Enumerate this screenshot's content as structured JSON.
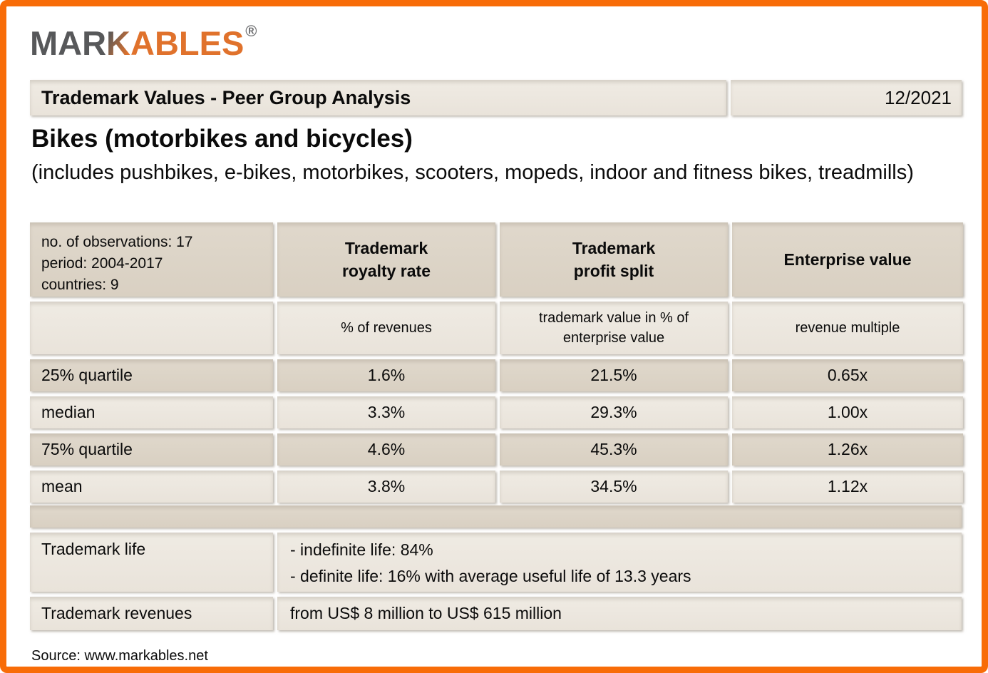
{
  "logo": {
    "part_gray": "MAR",
    "part_blend": "K",
    "part_orange": "ABLES",
    "registered_mark": "®"
  },
  "header": {
    "title": "Trademark Values - Peer Group Analysis",
    "date": "12/2021"
  },
  "subject": {
    "title": "Bikes (motorbikes and bicycles)",
    "description": "(includes pushbikes, e-bikes, motorbikes, scooters, mopeds, indoor and fitness bikes, treadmills)"
  },
  "table": {
    "meta": {
      "observations": "no. of observations: 17",
      "period": "period: 2004-2017",
      "countries": "countries: 9"
    },
    "columns": [
      {
        "label": "Trademark\nroyalty rate",
        "sub": "% of revenues"
      },
      {
        "label": "Trademark\nprofit split",
        "sub": "trademark value in % of enterprise value"
      },
      {
        "label": "Enterprise value",
        "sub": "revenue multiple"
      }
    ],
    "rows": [
      {
        "label": "25% quartile",
        "values": [
          "1.6%",
          "21.5%",
          "0.65x"
        ]
      },
      {
        "label": "median",
        "values": [
          "3.3%",
          "29.3%",
          "1.00x"
        ]
      },
      {
        "label": "75% quartile",
        "values": [
          "4.6%",
          "45.3%",
          "1.26x"
        ]
      },
      {
        "label": "mean",
        "values": [
          "3.8%",
          "34.5%",
          "1.12x"
        ]
      }
    ]
  },
  "details": [
    {
      "label": "Trademark life",
      "lines": [
        "- indefinite life: 84%",
        "- definite life: 16% with average useful life of 13.3 years"
      ]
    },
    {
      "label": "Trademark revenues",
      "lines": [
        "from US$ 8 million to US$ 615 million"
      ]
    }
  ],
  "footer": {
    "source": "Source: www.markables.net"
  },
  "colors": {
    "frame_orange": "#F86C08",
    "logo_orange": "#E0722C",
    "logo_gray": "#57585A",
    "cell_dark_beige": "#DDD5C8",
    "cell_light_beige": "#EDE8E0",
    "text": "#0B0B0B"
  }
}
